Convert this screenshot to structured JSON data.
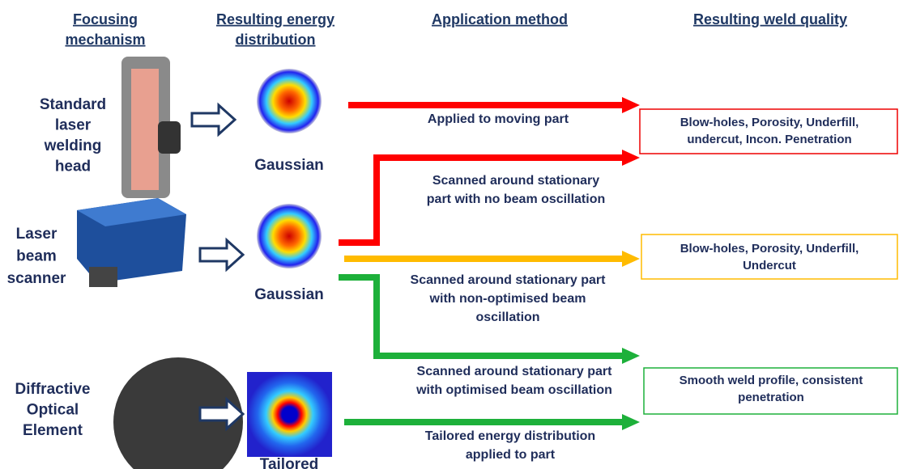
{
  "headers": [
    [
      "Focusing",
      "mechanism"
    ],
    [
      "Resulting energy",
      "distribution"
    ],
    [
      "Application method"
    ],
    [
      "Resulting weld quality"
    ]
  ],
  "mechanisms": [
    [
      "Standard",
      "laser",
      "welding",
      "head"
    ],
    [
      "Laser",
      "beam",
      "scanner"
    ],
    [
      "Diffractive",
      "Optical",
      "Element"
    ]
  ],
  "distributions": [
    "Gaussian",
    "Gaussian",
    "Tailored"
  ],
  "methods": [
    [
      "Applied to moving part"
    ],
    [
      "Scanned around stationary",
      "part with no beam oscillation"
    ],
    [
      "Scanned around stationary part",
      "with non-optimised beam",
      "oscillation"
    ],
    [
      "Scanned around stationary part",
      "with optimised beam oscillation"
    ],
    [
      "Tailored energy distribution",
      "applied to part"
    ]
  ],
  "outcomes": [
    [
      "Blow-holes, Porosity, Underfill,",
      "undercut, Incon. Penetration"
    ],
    [
      "Blow-holes, Porosity, Underfill,",
      "Undercut"
    ],
    [
      "Smooth weld profile, consistent",
      "penetration"
    ]
  ]
}
